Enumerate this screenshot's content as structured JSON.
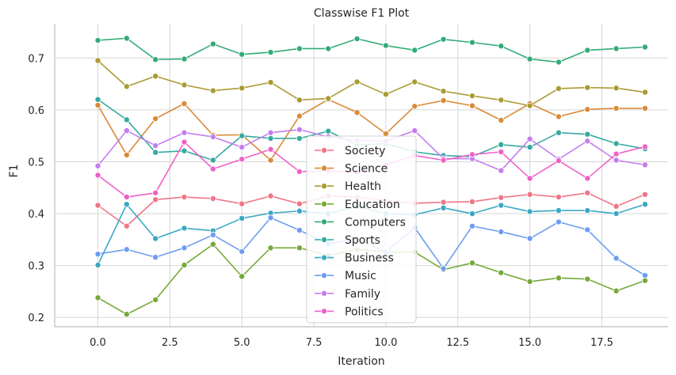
{
  "chart_data": {
    "type": "line",
    "title": "Classwise F1 Plot",
    "xlabel": "Iteration",
    "ylabel": "F1",
    "xlim": [
      -1.5,
      19.8
    ],
    "ylim": [
      0.182,
      0.766
    ],
    "x": [
      0,
      1,
      2,
      3,
      4,
      5,
      6,
      7,
      8,
      9,
      10,
      11,
      12,
      13,
      14,
      15,
      16,
      17,
      18,
      19
    ],
    "x_ticks": [
      0.0,
      2.5,
      5.0,
      7.5,
      10.0,
      12.5,
      15.0,
      17.5
    ],
    "x_tick_labels": [
      "0.0",
      "2.5",
      "5.0",
      "7.5",
      "10.0",
      "12.5",
      "15.0",
      "17.5"
    ],
    "y_ticks": [
      0.2,
      0.3,
      0.4,
      0.5,
      0.6,
      0.7
    ],
    "y_tick_labels": [
      "0.2",
      "0.3",
      "0.4",
      "0.5",
      "0.6",
      "0.7"
    ],
    "grid": true,
    "legend_position": "bottom-center",
    "series": [
      {
        "name": "Society",
        "color": "#f07585",
        "values": [
          0.416,
          0.376,
          0.427,
          0.432,
          0.429,
          0.419,
          0.434,
          0.419,
          0.434,
          0.432,
          0.425,
          0.42,
          0.422,
          0.423,
          0.431,
          0.437,
          0.432,
          0.44,
          0.414,
          0.437
        ]
      },
      {
        "name": "Science",
        "color": "#d98b38",
        "values": [
          0.609,
          0.513,
          0.583,
          0.612,
          0.551,
          0.552,
          0.503,
          0.588,
          0.62,
          0.595,
          0.554,
          0.607,
          0.618,
          0.608,
          0.58,
          0.612,
          0.587,
          0.601,
          0.603,
          0.603
        ]
      },
      {
        "name": "Health",
        "color": "#aa9b32",
        "values": [
          0.695,
          0.645,
          0.665,
          0.648,
          0.637,
          0.642,
          0.653,
          0.619,
          0.622,
          0.654,
          0.63,
          0.654,
          0.636,
          0.627,
          0.619,
          0.608,
          0.641,
          0.643,
          0.642,
          0.634
        ]
      },
      {
        "name": "Education",
        "color": "#76a93a",
        "values": [
          0.238,
          0.206,
          0.234,
          0.301,
          0.341,
          0.279,
          0.334,
          0.334,
          0.319,
          0.331,
          0.326,
          0.326,
          0.292,
          0.305,
          0.286,
          0.269,
          0.276,
          0.274,
          0.251,
          0.271
        ]
      },
      {
        "name": "Computers",
        "color": "#33ab78",
        "values": [
          0.734,
          0.738,
          0.697,
          0.698,
          0.727,
          0.707,
          0.711,
          0.718,
          0.718,
          0.737,
          0.724,
          0.715,
          0.736,
          0.73,
          0.723,
          0.698,
          0.692,
          0.715,
          0.718,
          0.721
        ]
      },
      {
        "name": "Sports",
        "color": "#36aaa0",
        "values": [
          0.62,
          0.581,
          0.518,
          0.521,
          0.503,
          0.55,
          0.545,
          0.545,
          0.559,
          0.532,
          0.535,
          0.519,
          0.512,
          0.51,
          0.533,
          0.528,
          0.556,
          0.553,
          0.535,
          0.525
        ]
      },
      {
        "name": "Business",
        "color": "#3aa8c4",
        "values": [
          0.301,
          0.418,
          0.352,
          0.372,
          0.367,
          0.391,
          0.401,
          0.405,
          0.4,
          0.414,
          0.4,
          0.398,
          0.411,
          0.4,
          0.416,
          0.404,
          0.406,
          0.406,
          0.4,
          0.418
        ]
      },
      {
        "name": "Music",
        "color": "#6e9df0",
        "values": [
          0.322,
          0.331,
          0.316,
          0.334,
          0.359,
          0.327,
          0.392,
          0.368,
          0.342,
          0.352,
          0.326,
          0.373,
          0.294,
          0.376,
          0.365,
          0.352,
          0.384,
          0.369,
          0.314,
          0.281
        ]
      },
      {
        "name": "Family",
        "color": "#c57df0",
        "values": [
          0.492,
          0.56,
          0.531,
          0.556,
          0.548,
          0.528,
          0.556,
          0.562,
          0.548,
          0.541,
          0.54,
          0.56,
          0.506,
          0.506,
          0.483,
          0.544,
          0.505,
          0.54,
          0.503,
          0.494
        ]
      },
      {
        "name": "Politics",
        "color": "#f060c8",
        "values": [
          0.474,
          0.432,
          0.44,
          0.538,
          0.486,
          0.505,
          0.524,
          0.481,
          0.482,
          0.48,
          0.494,
          0.512,
          0.503,
          0.514,
          0.519,
          0.468,
          0.502,
          0.468,
          0.515,
          0.529
        ]
      }
    ]
  }
}
